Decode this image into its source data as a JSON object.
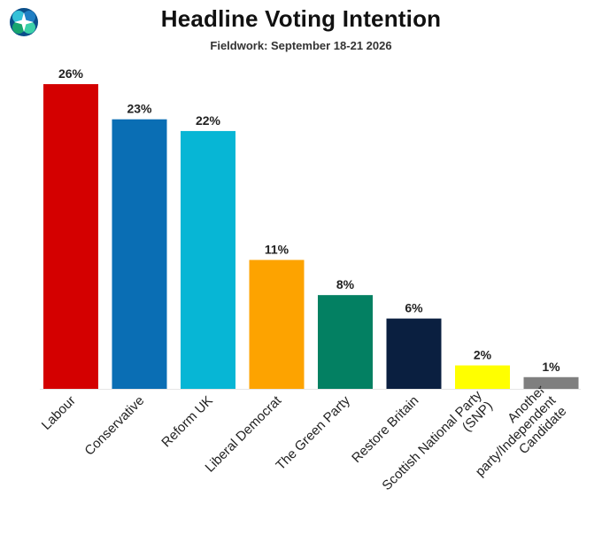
{
  "header": {
    "title": "Headline Voting Intention",
    "subtitle": "Fieldwork: September 18-21 2026",
    "logo_icon": "circular-logo-icon"
  },
  "chart_data": {
    "type": "bar",
    "title": "Headline Voting Intention",
    "subtitle": "Fieldwork: September 18-21 2026",
    "xlabel": "",
    "ylabel": "",
    "ylim": [
      0,
      26
    ],
    "grid": false,
    "categories": [
      [
        "Labour"
      ],
      [
        "Conservative"
      ],
      [
        "Reform UK"
      ],
      [
        "Liberal Democrat"
      ],
      [
        "The Green Party"
      ],
      [
        "Restore Britain"
      ],
      [
        "Scottish National Party",
        "(SNP)"
      ],
      [
        "Another",
        "party/Independent",
        "Candidate"
      ]
    ],
    "values": [
      26,
      23,
      22,
      11,
      8,
      6,
      2,
      1
    ],
    "data_labels": [
      "26%",
      "23%",
      "22%",
      "11%",
      "8%",
      "6%",
      "2%",
      "1%"
    ],
    "colors": [
      "#d40000",
      "#0a6eb4",
      "#07b6d5",
      "#fda300",
      "#038062",
      "#0a1f40",
      "#ffff00",
      "#7f7f7f"
    ]
  }
}
